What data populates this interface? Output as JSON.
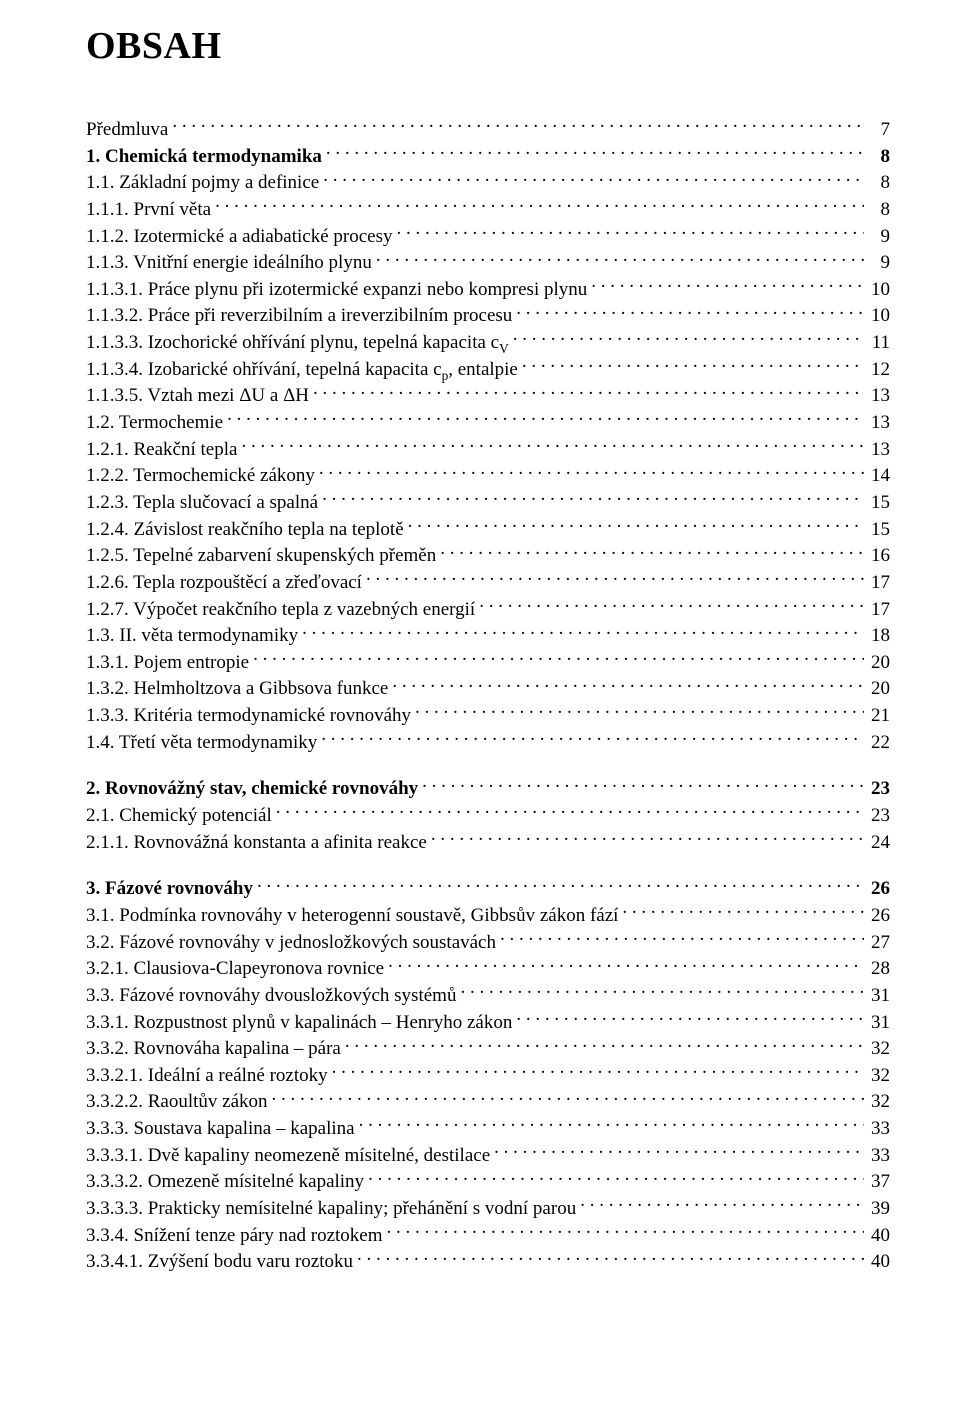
{
  "title": "OBSAH",
  "entries": [
    {
      "label": "Předmluva",
      "page": "7",
      "bold": false,
      "indent": 0
    },
    {
      "label": "1. Chemická termodynamika",
      "page": "8",
      "bold": true,
      "indent": 0
    },
    {
      "label": "1.1. Základní pojmy a definice",
      "page": "8",
      "bold": false,
      "indent": 0
    },
    {
      "label": "1.1.1. První věta",
      "page": "8",
      "bold": false,
      "indent": 0
    },
    {
      "label": "1.1.2. Izotermické a adiabatické procesy",
      "page": "9",
      "bold": false,
      "indent": 0
    },
    {
      "label": "1.1.3. Vnitřní energie ideálního plynu",
      "page": "9",
      "bold": false,
      "indent": 0
    },
    {
      "label": "1.1.3.1. Práce plynu při izotermické expanzi nebo kompresi plynu",
      "page": "10",
      "bold": false,
      "indent": 0
    },
    {
      "label": "1.1.3.2. Práce při reverzibilním a ireverzibilním procesu",
      "page": "10",
      "bold": false,
      "indent": 0
    },
    {
      "label": "1.1.3.3. Izochorické ohřívání plynu, tepelná kapacita c<sub>V</sub>",
      "page": "11",
      "bold": false,
      "indent": 0
    },
    {
      "label": "1.1.3.4. Izobarické ohřívání, tepelná kapacita c<sub>p</sub>, entalpie",
      "page": "12",
      "bold": false,
      "indent": 0
    },
    {
      "label": "1.1.3.5. Vztah mezi ΔU a ΔH",
      "page": "13",
      "bold": false,
      "indent": 0
    },
    {
      "label": "1.2. Termochemie",
      "page": "13",
      "bold": false,
      "indent": 0
    },
    {
      "label": "1.2.1. Reakční tepla",
      "page": "13",
      "bold": false,
      "indent": 0
    },
    {
      "label": "1.2.2. Termochemické zákony",
      "page": "14",
      "bold": false,
      "indent": 0
    },
    {
      "label": "1.2.3. Tepla slučovací a spalná",
      "page": "15",
      "bold": false,
      "indent": 0
    },
    {
      "label": "1.2.4. Závislost reakčního tepla na teplotě",
      "page": "15",
      "bold": false,
      "indent": 0
    },
    {
      "label": "1.2.5. Tepelné zabarvení skupenských přeměn",
      "page": "16",
      "bold": false,
      "indent": 0
    },
    {
      "label": "1.2.6. Tepla rozpouštěcí a zřeďovací",
      "page": "17",
      "bold": false,
      "indent": 0
    },
    {
      "label": "1.2.7. Výpočet reakčního tepla z vazebných energií",
      "page": "17",
      "bold": false,
      "indent": 0
    },
    {
      "label": "1.3. II. věta termodynamiky",
      "page": "18",
      "bold": false,
      "indent": 0
    },
    {
      "label": "1.3.1. Pojem entropie",
      "page": "20",
      "bold": false,
      "indent": 0
    },
    {
      "label": "1.3.2. Helmholtzova a Gibbsova funkce",
      "page": "20",
      "bold": false,
      "indent": 0
    },
    {
      "label": "1.3.3. Kritéria termodynamické rovnováhy",
      "page": "21",
      "bold": false,
      "indent": 0
    },
    {
      "label": "1.4. Třetí věta termodynamiky",
      "page": "22",
      "bold": false,
      "indent": 0
    },
    {
      "gap": true
    },
    {
      "label": "2. Rovnovážný stav, chemické rovnováhy",
      "page": "23",
      "bold": true,
      "indent": 0
    },
    {
      "label": "2.1. Chemický potenciál",
      "page": "23",
      "bold": false,
      "indent": 0
    },
    {
      "label": "2.1.1. Rovnovážná konstanta a afinita reakce",
      "page": "24",
      "bold": false,
      "indent": 0
    },
    {
      "gap": true
    },
    {
      "label": "3. Fázové rovnováhy",
      "page": "26",
      "bold": true,
      "indent": 0
    },
    {
      "label": "3.1. Podmínka rovnováhy v heterogenní soustavě, Gibbsův zákon fází",
      "page": "26",
      "bold": false,
      "indent": 0
    },
    {
      "label": "3.2. Fázové rovnováhy v jednosložkových soustavách",
      "page": "27",
      "bold": false,
      "indent": 0
    },
    {
      "label": "3.2.1. Clausiova-Clapeyronova rovnice",
      "page": "28",
      "bold": false,
      "indent": 0
    },
    {
      "label": "3.3. Fázové rovnováhy dvousložkových systémů",
      "page": "31",
      "bold": false,
      "indent": 0
    },
    {
      "label": "3.3.1. Rozpustnost plynů v kapalinách – Henryho zákon",
      "page": "31",
      "bold": false,
      "indent": 0
    },
    {
      "label": "3.3.2. Rovnováha kapalina – pára",
      "page": "32",
      "bold": false,
      "indent": 0
    },
    {
      "label": "3.3.2.1. Ideální a reálné roztoky",
      "page": "32",
      "bold": false,
      "indent": 0
    },
    {
      "label": "3.3.2.2. Raoultův zákon",
      "page": "32",
      "bold": false,
      "indent": 0
    },
    {
      "label": "3.3.3. Soustava kapalina – kapalina",
      "page": "33",
      "bold": false,
      "indent": 0
    },
    {
      "label": "3.3.3.1. Dvě kapaliny neomezeně mísitelné, destilace",
      "page": "33",
      "bold": false,
      "indent": 0
    },
    {
      "label": "3.3.3.2. Omezeně mísitelné kapaliny",
      "page": "37",
      "bold": false,
      "indent": 0
    },
    {
      "label": "3.3.3.3. Prakticky nemísitelné kapaliny; přehánění s vodní parou",
      "page": "39",
      "bold": false,
      "indent": 0
    },
    {
      "label": "3.3.4. Snížení tenze páry nad roztokem",
      "page": "40",
      "bold": false,
      "indent": 0
    },
    {
      "label": "3.3.4.1. Zvýšení bodu varu roztoku",
      "page": "40",
      "bold": false,
      "indent": 0
    }
  ]
}
